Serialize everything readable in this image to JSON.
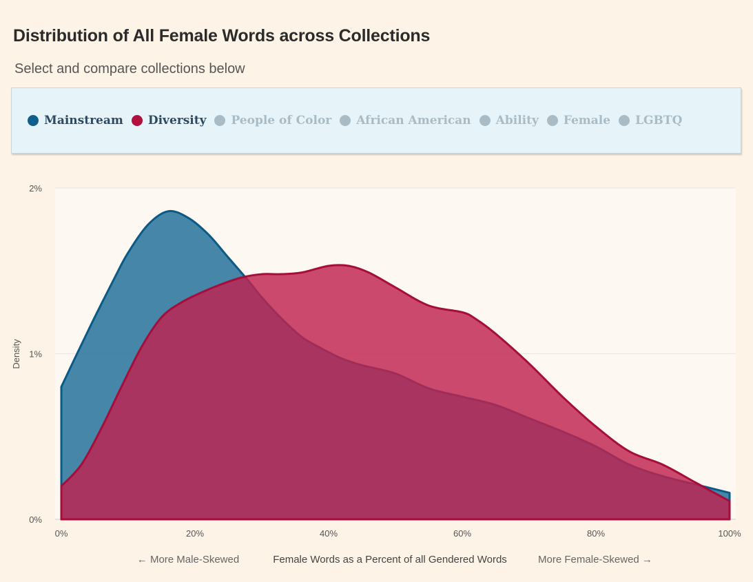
{
  "title": "Distribution of All Female Words across Collections",
  "subtitle": "Select and compare collections below",
  "collections": [
    {
      "label": "Mainstream",
      "active": true,
      "color": "#0f5f8c"
    },
    {
      "label": "Diversity",
      "active": true,
      "color": "#b3103e"
    },
    {
      "label": "People of Color",
      "active": false,
      "color": "#a9bcc6"
    },
    {
      "label": "African American",
      "active": false,
      "color": "#a9bcc6"
    },
    {
      "label": "Ability",
      "active": false,
      "color": "#a9bcc6"
    },
    {
      "label": "Female",
      "active": false,
      "color": "#a9bcc6"
    },
    {
      "label": "LGBTQ",
      "active": false,
      "color": "#a9bcc6"
    }
  ],
  "colors": {
    "background": "#fdf3e6",
    "plot_background": "#fdf8f2",
    "mainstream_fill": "#1c6d99",
    "mainstream_stroke": "#0b5985",
    "diversity_fill": "#c0224f",
    "diversity_stroke": "#a50d3a"
  },
  "chart_data": {
    "type": "area",
    "ylabel": "Density",
    "xlabel": "Female Words as a Percent of all Gendered Words",
    "xlabel_left": "← More Male-Skewed",
    "xlabel_right": "More Female-Skewed →",
    "xlim": [
      0,
      100
    ],
    "ylim": [
      0,
      2
    ],
    "x_ticks": [
      "0%",
      "20%",
      "40%",
      "60%",
      "80%",
      "100%"
    ],
    "y_ticks": [
      "0%",
      "1%",
      "2%"
    ],
    "grid": true,
    "series": [
      {
        "name": "Mainstream",
        "x": [
          0,
          2,
          5,
          8,
          10,
          13,
          16,
          19,
          22,
          25,
          28,
          30,
          33,
          36,
          39,
          42,
          45,
          50,
          55,
          60,
          65,
          70,
          75,
          80,
          85,
          90,
          95,
          100
        ],
        "y": [
          0.8,
          0.97,
          1.22,
          1.46,
          1.61,
          1.78,
          1.86,
          1.82,
          1.72,
          1.58,
          1.44,
          1.34,
          1.21,
          1.1,
          1.03,
          0.97,
          0.93,
          0.88,
          0.79,
          0.74,
          0.69,
          0.61,
          0.53,
          0.44,
          0.33,
          0.26,
          0.21,
          0.16
        ]
      },
      {
        "name": "Diversity",
        "x": [
          0,
          3,
          6,
          9,
          12,
          15,
          18,
          21,
          24,
          27,
          30,
          33,
          36,
          40,
          43,
          46,
          50,
          55,
          60,
          62,
          65,
          70,
          75,
          80,
          85,
          90,
          95,
          100
        ],
        "y": [
          0.2,
          0.33,
          0.55,
          0.8,
          1.04,
          1.22,
          1.31,
          1.37,
          1.42,
          1.46,
          1.48,
          1.48,
          1.49,
          1.53,
          1.53,
          1.49,
          1.4,
          1.29,
          1.25,
          1.21,
          1.12,
          0.94,
          0.74,
          0.56,
          0.41,
          0.33,
          0.22,
          0.11
        ]
      }
    ]
  }
}
